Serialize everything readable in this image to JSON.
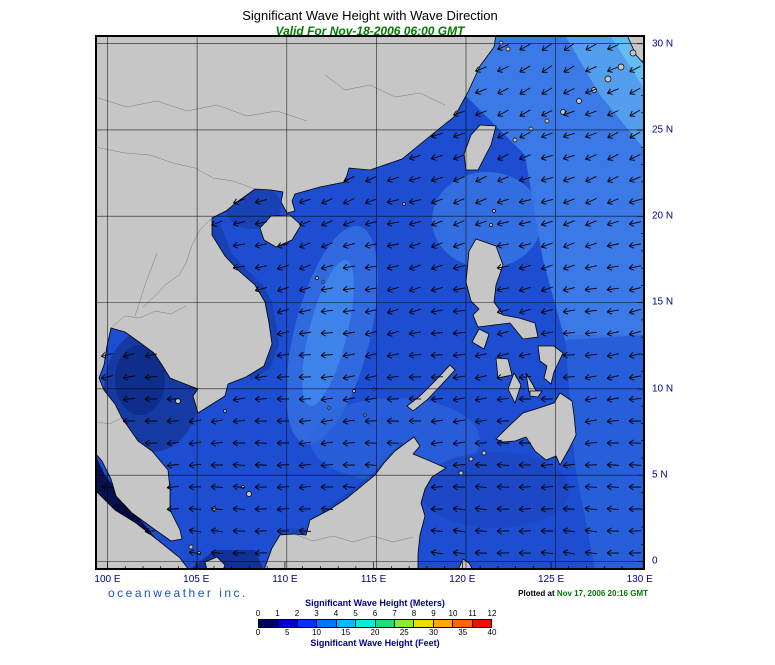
{
  "header": {
    "title": "Significant Wave Height with Wave Direction",
    "subtitle": "Valid For Nov-18-2006 06:00 GMT"
  },
  "map": {
    "x_axis_labels": [
      "100 E",
      "105 E",
      "110 E",
      "115 E",
      "120 E",
      "125 E",
      "130 E"
    ],
    "y_axis_labels": [
      "30 N",
      "25 N",
      "20 N",
      "15 N",
      "10 N",
      "5 N",
      "0"
    ]
  },
  "footer": {
    "branding": "oceanweather inc.",
    "plotted_label": "Plotted at",
    "plotted_value": "Nov 17, 2006 20:16 GMT"
  },
  "legend": {
    "meters_title": "Significant Wave Height (Meters)",
    "meters_ticks": [
      "0",
      "1",
      "2",
      "3",
      "4",
      "5",
      "6",
      "7",
      "8",
      "9",
      "10",
      "11",
      "12"
    ],
    "feet_title": "Significant Wave Height (Feet)",
    "feet_ticks": [
      "0",
      "5",
      "10",
      "15",
      "20",
      "25",
      "30",
      "35",
      "40"
    ],
    "colors": [
      "#000066",
      "#0000cc",
      "#0033ff",
      "#0077ff",
      "#00bbff",
      "#00eedd",
      "#22dd77",
      "#88ee33",
      "#eedd00",
      "#ffaa00",
      "#ff6600",
      "#ee1100"
    ]
  },
  "chart_data": {
    "type": "heatmap",
    "title": "Significant Wave Height with Wave Direction",
    "valid_for": "Nov-18-2006 06:00 GMT",
    "region": {
      "lon_range": [
        "100 E",
        "130 E"
      ],
      "lat_range": [
        "0",
        "30 N"
      ]
    },
    "scale_meters": [
      0,
      12
    ],
    "scale_feet": [
      0,
      40
    ],
    "legend_colors": [
      "#000066",
      "#0000cc",
      "#0033ff",
      "#0077ff",
      "#00bbff",
      "#00eedd",
      "#22dd77",
      "#88ee33",
      "#eedd00",
      "#ffaa00",
      "#ff6600",
      "#ee1100"
    ]
  }
}
